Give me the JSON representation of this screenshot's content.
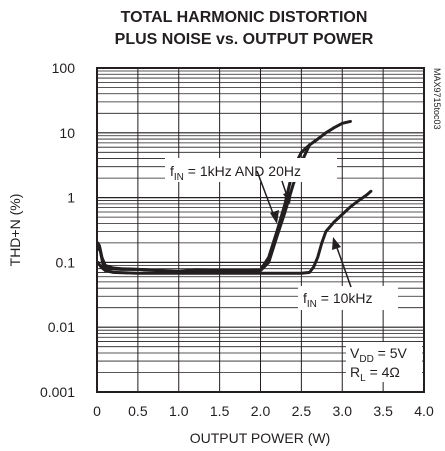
{
  "chart_data": {
    "type": "line",
    "title_line1": "TOTAL HARMONIC DISTORTION",
    "title_line2": "PLUS NOISE vs. OUTPUT POWER",
    "xlabel": "OUTPUT POWER (W)",
    "ylabel": "THD+N (%)",
    "xlim": [
      0,
      4.0
    ],
    "ylim": [
      0.001,
      100
    ],
    "yscale": "log",
    "x_ticks": [
      "0",
      "0.5",
      "1.0",
      "1.5",
      "2.0",
      "2.5",
      "3.0",
      "3.5",
      "4.0"
    ],
    "y_ticks": [
      "0.001",
      "0.01",
      "0.1",
      "1",
      "10",
      "100"
    ],
    "grid": true,
    "figure_id": "MAX9715toc03",
    "annotations": {
      "fin_low": {
        "main": "f",
        "sub": "IN",
        "rest": " = 1kHz AND 20Hz"
      },
      "fin_high": {
        "main": "f",
        "sub": "IN",
        "rest": " = 10kHz"
      },
      "vdd": {
        "main": "V",
        "sub": "DD",
        "rest": " = 5V"
      },
      "rl": {
        "main": "R",
        "sub": "L",
        "rest": " = 4Ω"
      }
    },
    "series": [
      {
        "x": [
          0.01,
          0.04,
          0.08,
          0.15,
          0.3,
          0.5,
          0.8,
          1.0,
          1.2,
          1.5,
          1.8,
          2.0,
          2.1,
          2.2,
          2.3,
          2.4,
          2.5,
          2.6,
          2.7,
          2.8,
          2.9,
          3.0,
          3.1
        ],
        "y": [
          0.17,
          0.15,
          0.085,
          0.08,
          0.078,
          0.078,
          0.075,
          0.073,
          0.077,
          0.076,
          0.076,
          0.077,
          0.12,
          0.3,
          0.8,
          2.8,
          5,
          6.5,
          8,
          10,
          12,
          14,
          15
        ]
      },
      {
        "x": [
          0.01,
          0.03,
          0.06,
          0.1,
          0.2,
          0.3,
          0.5,
          0.8,
          1.0,
          1.2,
          1.5,
          1.8,
          2.0,
          2.1,
          2.2,
          2.3,
          2.4,
          2.5,
          2.6
        ],
        "y": [
          0.2,
          0.18,
          0.12,
          0.09,
          0.082,
          0.08,
          0.078,
          0.074,
          0.072,
          0.075,
          0.074,
          0.074,
          0.075,
          0.1,
          0.25,
          0.6,
          1.6,
          3.5,
          6.5
        ]
      },
      {
        "x": [
          0.01,
          0.05,
          0.1,
          0.2,
          0.5,
          1.0,
          1.5,
          2.0,
          2.5,
          2.6,
          2.65,
          2.7,
          2.75,
          2.8,
          2.9,
          3.0,
          3.1,
          3.2,
          3.3,
          3.35
        ],
        "y": [
          0.1,
          0.085,
          0.075,
          0.07,
          0.068,
          0.068,
          0.068,
          0.068,
          0.068,
          0.07,
          0.085,
          0.12,
          0.2,
          0.3,
          0.42,
          0.55,
          0.72,
          0.9,
          1.1,
          1.25
        ]
      }
    ]
  }
}
